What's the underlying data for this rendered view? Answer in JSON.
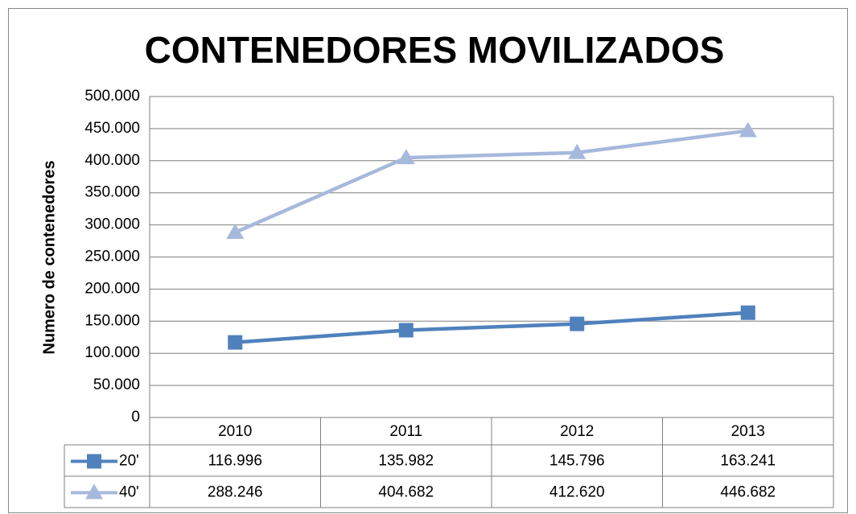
{
  "chart_data": {
    "type": "line",
    "title": "CONTENEDORES MOVILIZADOS",
    "y_label": "Numero de contenedores",
    "categories": [
      "2010",
      "2011",
      "2012",
      "2013"
    ],
    "series": [
      {
        "name": "20'",
        "color": "#4f81bd",
        "marker": "square",
        "values": [
          116996,
          135982,
          145796,
          163241
        ],
        "value_labels": [
          "116.996",
          "135.982",
          "145.796",
          "163.241"
        ]
      },
      {
        "name": "40'",
        "color": "#a6b9dc",
        "marker": "triangle",
        "values": [
          288246,
          404682,
          412620,
          446682
        ],
        "value_labels": [
          "288.246",
          "404.682",
          "412.620",
          "446.682"
        ]
      }
    ],
    "ylim": [
      0,
      500000
    ],
    "yticks": [
      0,
      {
        "value": 50000,
        "label": "50.000"
      },
      {
        "value": 100000,
        "label": "100.000"
      },
      {
        "value": 150000,
        "label": "150.000"
      },
      {
        "value": 200000,
        "label": "200.000"
      },
      {
        "value": 250000,
        "label": "250.000"
      },
      {
        "value": 300000,
        "label": "300.000"
      },
      {
        "value": 350000,
        "label": "350.000"
      },
      {
        "value": 400000,
        "label": "400.000"
      },
      {
        "value": 450000,
        "label": "450.000"
      },
      {
        "value": 500000,
        "label": "500.000"
      }
    ],
    "grid": true,
    "data_table": true
  }
}
